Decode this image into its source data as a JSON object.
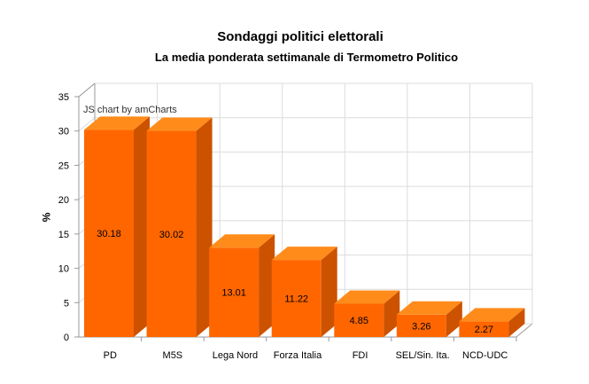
{
  "chart_data": {
    "type": "bar",
    "title": "Sondaggi politici elettorali",
    "subtitle": "La media ponderata settimanale di Termometro Politico",
    "xlabel": "",
    "ylabel": "%",
    "ylim": [
      0,
      35
    ],
    "yticks": [
      0,
      5,
      10,
      15,
      20,
      25,
      30,
      35
    ],
    "grid": true,
    "legend": "none",
    "categories": [
      "PD",
      "M5S",
      "Lega Nord",
      "Forza Italia",
      "FDI",
      "SEL/Sin. Ita.",
      "NCD-UDC"
    ],
    "values": [
      30.18,
      30.02,
      13.01,
      11.22,
      4.85,
      3.26,
      2.27
    ],
    "value_labels": [
      "30.18",
      "30.02",
      "13.01",
      "11.22",
      "4.85",
      "3.26",
      "2.27"
    ],
    "colors": {
      "front": "#ff6600",
      "side": "#cc5200",
      "top": "#ff8c1a",
      "grid": "#dcdcdc",
      "axis": "#999999"
    }
  },
  "credit": "JS chart by amCharts"
}
